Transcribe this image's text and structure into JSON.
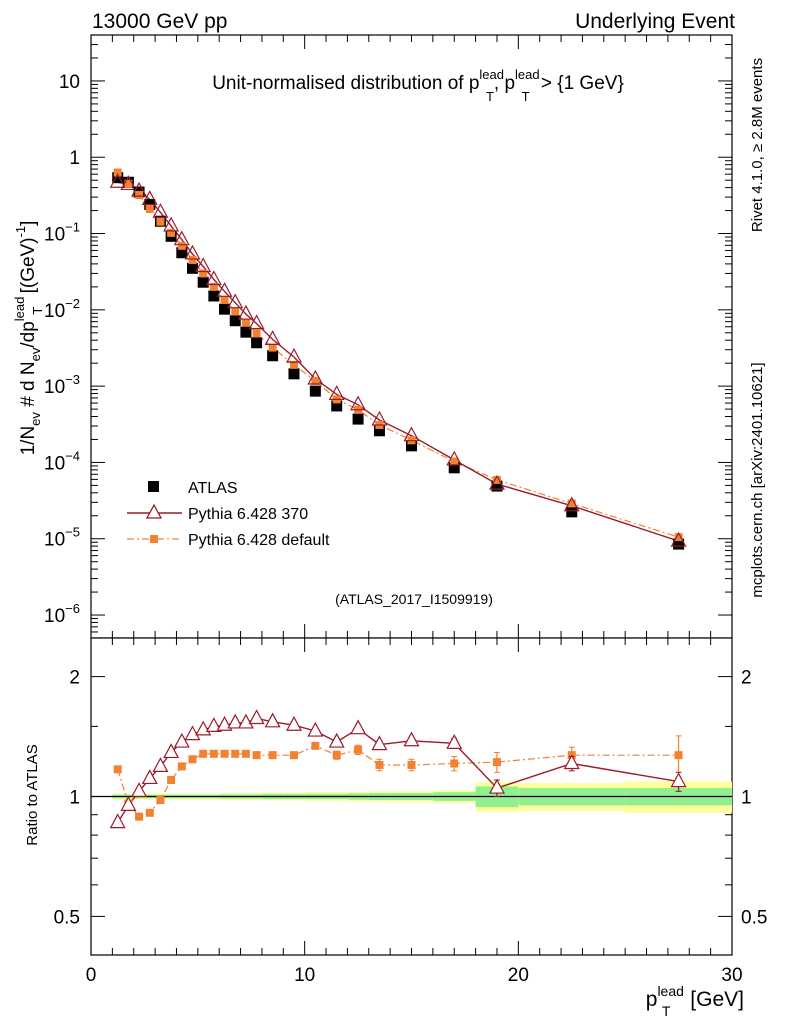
{
  "header": {
    "left": "13000 GeV pp",
    "right": "Underlying Event"
  },
  "side_labels": {
    "rivet": "Rivet 4.1.0, ≥ 2.8M events",
    "mcplots": "mcplots.cern.ch [arXiv:2401.10621]"
  },
  "colors": {
    "atlas": "#000000",
    "pythia370": "#9b1b2a",
    "pythia_default": "#f28232",
    "band_inner": "#90f090",
    "band_outer": "#ffff99",
    "watermark": "#999999"
  },
  "chart_data": [
    {
      "panel": "main",
      "type": "scatter",
      "title_main": "Unit-normalised distribution of p",
      "title_sup": "lead",
      "title_sub": "T",
      "title_mid": ", p",
      "title_end": " > {1 GeV}",
      "ylabel_a": "1/N",
      "ylabel_b": "ev",
      "ylabel_c": " # d N",
      "ylabel_d": "/dp",
      "ylabel_e": " [(GeV)",
      "ylabel_f": "-1",
      "ylabel_g": "]",
      "yscale": "log",
      "xlim": [
        0,
        30
      ],
      "ylim": [
        5e-07,
        40
      ],
      "y_ticks": [
        {
          "value": 10,
          "label": "10"
        },
        {
          "value": 1,
          "label": "1"
        },
        {
          "value": 0.1,
          "base": "10",
          "exp": "−1"
        },
        {
          "value": 0.01,
          "base": "10",
          "exp": "−2"
        },
        {
          "value": 0.001,
          "base": "10",
          "exp": "−3"
        },
        {
          "value": 0.0001,
          "base": "10",
          "exp": "−4"
        },
        {
          "value": 1e-05,
          "base": "10",
          "exp": "−5"
        },
        {
          "value": 1e-06,
          "base": "10",
          "exp": "−6"
        }
      ],
      "analysis_tag": "(ATLAS_2017_I1509919)",
      "legend": [
        {
          "name": "ATLAS",
          "marker": "square-filled"
        },
        {
          "name": "Pythia 6.428 370",
          "marker": "triangle-open"
        },
        {
          "name": "Pythia 6.428 default",
          "marker": "square-small"
        }
      ],
      "bins": [
        [
          1.0,
          1.5
        ],
        [
          1.5,
          2.0
        ],
        [
          2.0,
          2.5
        ],
        [
          2.5,
          3.0
        ],
        [
          3.0,
          3.5
        ],
        [
          3.5,
          4.0
        ],
        [
          4.0,
          4.5
        ],
        [
          4.5,
          5.0
        ],
        [
          5.0,
          5.5
        ],
        [
          5.5,
          6.0
        ],
        [
          6.0,
          6.5
        ],
        [
          6.5,
          7.0
        ],
        [
          7.0,
          7.5
        ],
        [
          7.5,
          8.0
        ],
        [
          8.0,
          9.0
        ],
        [
          9.0,
          10.0
        ],
        [
          10.0,
          11.0
        ],
        [
          11.0,
          12.0
        ],
        [
          12.0,
          13.0
        ],
        [
          13.0,
          14.0
        ],
        [
          14.0,
          16.0
        ],
        [
          16.0,
          18.0
        ],
        [
          18.0,
          20.0
        ],
        [
          20.0,
          25.0
        ],
        [
          25.0,
          30.0
        ]
      ],
      "x": [
        1.25,
        1.75,
        2.25,
        2.75,
        3.25,
        3.75,
        4.25,
        4.75,
        5.25,
        5.75,
        6.25,
        6.75,
        7.25,
        7.75,
        8.5,
        9.5,
        10.5,
        11.5,
        12.5,
        13.5,
        15.0,
        17.0,
        19.0,
        22.5,
        27.5
      ],
      "series": [
        {
          "name": "ATLAS",
          "values": [
            0.54,
            0.47,
            0.35,
            0.24,
            0.145,
            0.092,
            0.056,
            0.035,
            0.023,
            0.0152,
            0.0102,
            0.0072,
            0.0051,
            0.0037,
            0.0025,
            0.00145,
            0.00086,
            0.00055,
            0.00037,
            0.00026,
            0.000165,
            8.5e-05,
            4.9e-05,
            2.25e-05,
            8.5e-06
          ]
        },
        {
          "name": "Pythia 6.428 370",
          "values": [
            0.47,
            0.44,
            0.36,
            0.28,
            0.19,
            0.126,
            0.083,
            0.054,
            0.037,
            0.025,
            0.0175,
            0.0124,
            0.0088,
            0.0066,
            0.0041,
            0.0024,
            0.00124,
            0.00078,
            0.00057,
            0.00036,
            0.000224,
            0.000108,
            5.2e-05,
            2.7e-05,
            9.3e-06
          ]
        },
        {
          "name": "Pythia 6.428 default",
          "values": [
            0.63,
            0.45,
            0.32,
            0.21,
            0.143,
            0.102,
            0.069,
            0.045,
            0.03,
            0.02,
            0.0135,
            0.0095,
            0.0068,
            0.0049,
            0.0032,
            0.0019,
            0.00117,
            0.00067,
            0.00049,
            0.00031,
            0.000195,
            0.000103,
            5.9e-05,
            2.9e-05,
            1.05e-05
          ]
        }
      ]
    },
    {
      "panel": "ratio",
      "type": "line",
      "ylabel": "Ratio to ATLAS",
      "yscale": "log",
      "xlim": [
        0,
        30
      ],
      "ylim": [
        0.4,
        2.5
      ],
      "y_ticks": [
        {
          "value": 2,
          "label": "2"
        },
        {
          "value": 1,
          "label": "1"
        },
        {
          "value": 0.5,
          "label": "0.5"
        }
      ],
      "x_ticks": [
        {
          "value": 0,
          "label": "0"
        },
        {
          "value": 10,
          "label": "10"
        },
        {
          "value": 20,
          "label": "20"
        },
        {
          "value": 30,
          "label": "30"
        }
      ],
      "xlabel_main": "p",
      "xlabel_sup": "lead",
      "xlabel_sub": "T",
      "xlabel_unit": " [GeV]",
      "uncertainty_inner": [
        0.01,
        0.01,
        0.01,
        0.01,
        0.01,
        0.01,
        0.01,
        0.01,
        0.01,
        0.01,
        0.012,
        0.012,
        0.012,
        0.012,
        0.015,
        0.015,
        0.015,
        0.015,
        0.018,
        0.02,
        0.02,
        0.025,
        0.06,
        0.05,
        0.05
      ],
      "uncertainty_outer": [
        0.018,
        0.018,
        0.018,
        0.018,
        0.018,
        0.018,
        0.018,
        0.018,
        0.018,
        0.018,
        0.02,
        0.02,
        0.02,
        0.02,
        0.022,
        0.022,
        0.025,
        0.025,
        0.028,
        0.03,
        0.03,
        0.035,
        0.085,
        0.08,
        0.09
      ],
      "series": [
        {
          "name": "Pythia 6.428 370",
          "values": [
            0.86,
            0.95,
            1.03,
            1.11,
            1.19,
            1.29,
            1.37,
            1.43,
            1.47,
            1.5,
            1.51,
            1.53,
            1.53,
            1.57,
            1.54,
            1.51,
            1.46,
            1.37,
            1.48,
            1.35,
            1.38,
            1.36,
            1.05,
            1.21,
            1.09
          ],
          "errors": [
            0.005,
            0.005,
            0.005,
            0.005,
            0.005,
            0.005,
            0.005,
            0.005,
            0.006,
            0.007,
            0.008,
            0.009,
            0.01,
            0.01,
            0.01,
            0.012,
            0.015,
            0.02,
            0.025,
            0.03,
            0.03,
            0.04,
            0.05,
            0.05,
            0.06
          ]
        },
        {
          "name": "Pythia 6.428 default",
          "values": [
            1.17,
            0.96,
            0.89,
            0.91,
            0.98,
            1.1,
            1.19,
            1.24,
            1.28,
            1.28,
            1.28,
            1.28,
            1.28,
            1.27,
            1.27,
            1.27,
            1.34,
            1.27,
            1.31,
            1.2,
            1.2,
            1.21,
            1.22,
            1.27,
            1.27
          ],
          "errors": [
            0.005,
            0.005,
            0.005,
            0.005,
            0.005,
            0.005,
            0.005,
            0.006,
            0.007,
            0.008,
            0.009,
            0.01,
            0.01,
            0.012,
            0.015,
            0.018,
            0.02,
            0.03,
            0.035,
            0.04,
            0.04,
            0.05,
            0.07,
            0.06,
            0.15
          ]
        }
      ]
    }
  ]
}
